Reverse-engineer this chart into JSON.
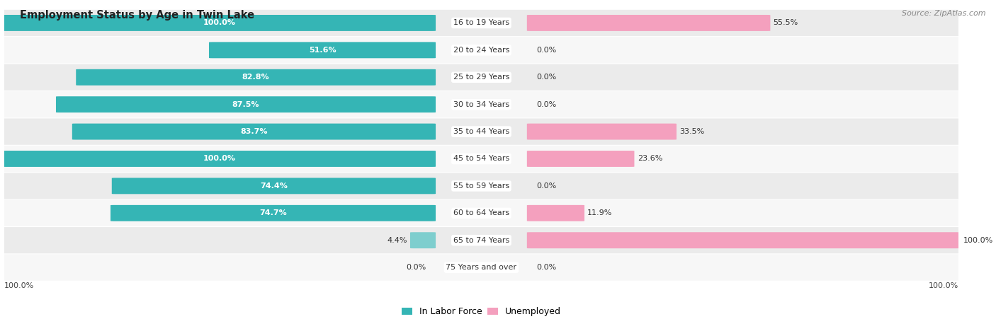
{
  "title": "Employment Status by Age in Twin Lake",
  "source": "Source: ZipAtlas.com",
  "categories": [
    "16 to 19 Years",
    "20 to 24 Years",
    "25 to 29 Years",
    "30 to 34 Years",
    "35 to 44 Years",
    "45 to 54 Years",
    "55 to 59 Years",
    "60 to 64 Years",
    "65 to 74 Years",
    "75 Years and over"
  ],
  "labor_force": [
    100.0,
    51.6,
    82.8,
    87.5,
    83.7,
    100.0,
    74.4,
    74.7,
    4.4,
    0.0
  ],
  "unemployed": [
    55.5,
    0.0,
    0.0,
    0.0,
    33.5,
    23.6,
    0.0,
    11.9,
    100.0,
    0.0
  ],
  "labor_force_color": "#35b5b5",
  "labor_force_color_light": "#7ecece",
  "unemployed_color_light": "#f4a0be",
  "row_bg_even": "#ebebeb",
  "row_bg_odd": "#f7f7f7",
  "label_white": "#ffffff",
  "label_dark": "#333333",
  "title_fontsize": 10.5,
  "source_fontsize": 8,
  "legend_fontsize": 9,
  "bar_label_fontsize": 8,
  "category_fontsize": 8,
  "axis_label_fontsize": 8,
  "legend_labels": [
    "In Labor Force",
    "Unemployed"
  ],
  "x_axis_label_left": "100.0%",
  "x_axis_label_right": "100.0%"
}
